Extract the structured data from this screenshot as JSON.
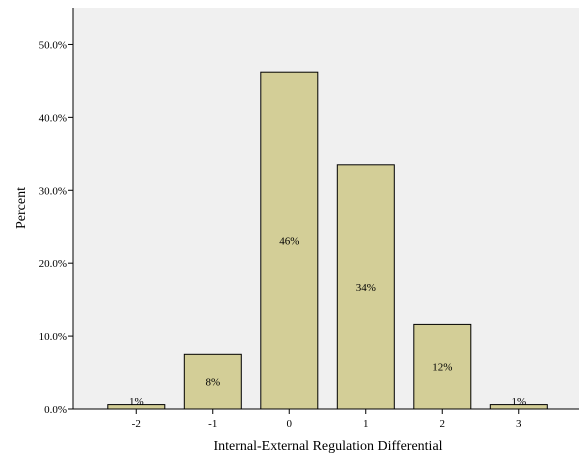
{
  "chart_data": {
    "type": "bar",
    "categories": [
      "-2",
      "-1",
      "0",
      "1",
      "2",
      "3"
    ],
    "values": [
      0.6,
      7.5,
      46.2,
      33.5,
      11.6,
      0.6
    ],
    "bar_labels": [
      "1%",
      "8%",
      "46%",
      "34%",
      "12%",
      "1%"
    ],
    "title": "",
    "xlabel": "Internal-External Regulation Differential",
    "ylabel": "Percent",
    "ylim": [
      0,
      55
    ],
    "yticks": [
      0,
      10,
      20,
      30,
      40,
      50
    ],
    "ytick_labels": [
      "0.0%",
      "10.0%",
      "20.0%",
      "30.0%",
      "40.0%",
      "50.0%"
    ],
    "grid": false,
    "legend": "none",
    "colors": {
      "plot_background": "#f0f0f0",
      "bar_fill": "#d3ce97",
      "bar_stroke": "#000000",
      "axis": "#000000"
    }
  }
}
